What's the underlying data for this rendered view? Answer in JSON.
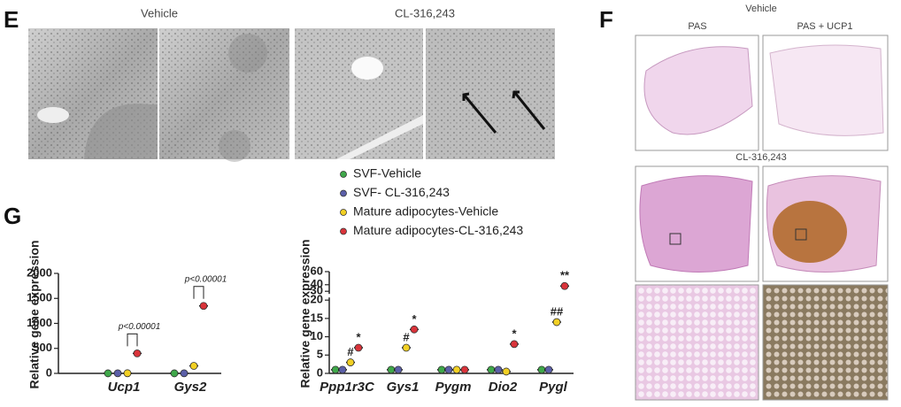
{
  "panels": {
    "e": {
      "label": "E",
      "vehicle": "Vehicle",
      "treated": "CL-316,243"
    },
    "f": {
      "label": "F",
      "vehicle": "Vehicle",
      "pas": "PAS",
      "pas_ucp1": "PAS + UCP1",
      "treated": "CL-316,243"
    },
    "g": {
      "label": "G"
    }
  },
  "chart_data": [
    {
      "type": "scatter",
      "y_label": "Relative gene expression",
      "categories": [
        "Ucp1",
        "Gys2"
      ],
      "series": [
        {
          "name": "SVF-Vehicle",
          "color": "#3fa84a",
          "values": [
            1,
            1
          ]
        },
        {
          "name": "SVF- CL-316,243",
          "color": "#5b5fa8",
          "values": [
            2,
            2
          ]
        },
        {
          "name": "Mature adipocytes-Vehicle",
          "color": "#f2d024",
          "values": [
            3,
            150
          ]
        },
        {
          "name": "Mature adipocytes-CL-316,243",
          "color": "#d9333a",
          "values": [
            400,
            1350
          ]
        }
      ],
      "ylim": [
        0,
        2000
      ],
      "yticks": [
        0,
        500,
        1000,
        1500,
        2000
      ],
      "annotations": [
        "p<0.00001",
        "p<0.00001"
      ]
    },
    {
      "type": "scatter",
      "y_label": "Relative gene expression",
      "categories": [
        "Ppp1r3C",
        "Gys1",
        "Pygm",
        "Dio2",
        "Pygl"
      ],
      "series": [
        {
          "color": "#3fa84a",
          "values": [
            1,
            1,
            1,
            1,
            1
          ]
        },
        {
          "color": "#5b5fa8",
          "values": [
            1,
            1,
            1,
            1,
            1
          ]
        },
        {
          "color": "#f2d024",
          "values": [
            3,
            7,
            1,
            0.5,
            14
          ]
        },
        {
          "color": "#d9333a",
          "values": [
            7,
            12,
            1,
            8,
            38
          ]
        }
      ],
      "ylim": [
        0,
        60
      ],
      "y_break": [
        20,
        30
      ],
      "yticks": [
        0,
        5,
        10,
        15,
        20,
        30,
        40,
        60
      ],
      "annotations": [
        "#",
        "*",
        "#",
        "*",
        "*",
        "##",
        "**"
      ]
    }
  ]
}
